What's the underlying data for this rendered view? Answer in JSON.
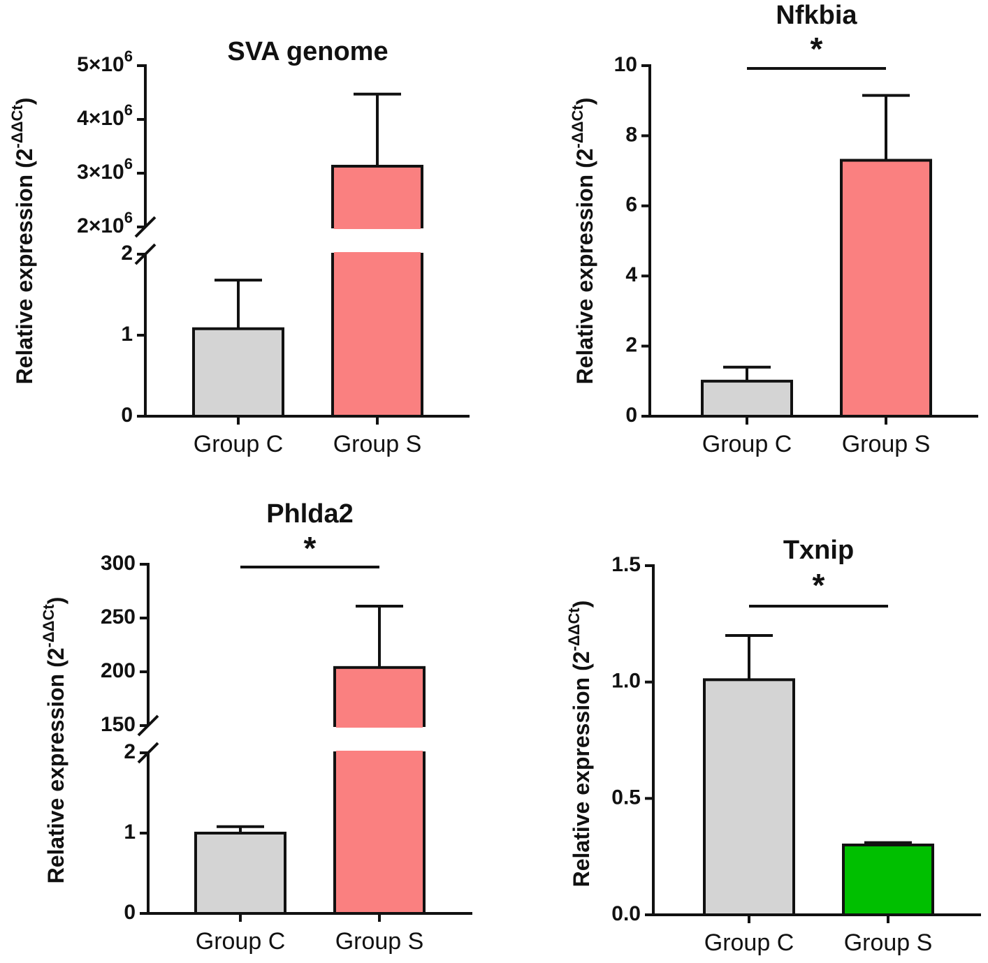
{
  "ylabel": {
    "base": "Relative expression (2",
    "exponent": "-ΔΔCt",
    "close": ")"
  },
  "chart_data": [
    {
      "type": "bar",
      "title": "SVA genome",
      "categories": [
        "Group C",
        "Group S"
      ],
      "values": [
        1.08,
        3130000
      ],
      "errors": [
        0.6,
        1340000
      ],
      "colors": [
        "#d4d4d4",
        "#fa8080"
      ],
      "significance": "",
      "ylabel": "Relative expression (2^-ΔΔCt)",
      "broken_axis": true,
      "lower_range": [
        0,
        2
      ],
      "upper_range": [
        2000000,
        5000000
      ],
      "lower_ticks": [
        "0",
        "1",
        "2"
      ],
      "upper_ticks": [
        "2×10^6",
        "3×10^6",
        "4×10^6",
        "5×10^6"
      ]
    },
    {
      "type": "bar",
      "title": "Nfkbia",
      "categories": [
        "Group C",
        "Group S"
      ],
      "values": [
        1.0,
        7.3
      ],
      "errors": [
        0.4,
        1.85
      ],
      "colors": [
        "#d4d4d4",
        "#fa8080"
      ],
      "significance": "*",
      "ylabel": "Relative expression (2^-ΔΔCt)",
      "broken_axis": false,
      "ylim": [
        0,
        10
      ],
      "ticks": [
        "0",
        "2",
        "4",
        "6",
        "8",
        "10"
      ]
    },
    {
      "type": "bar",
      "title": "Phlda2",
      "categories": [
        "Group C",
        "Group S"
      ],
      "values": [
        1.0,
        204
      ],
      "errors": [
        0.08,
        57
      ],
      "colors": [
        "#d4d4d4",
        "#fa8080"
      ],
      "significance": "*",
      "ylabel": "Relative expression (2^-ΔΔCt)",
      "broken_axis": true,
      "lower_range": [
        0,
        2
      ],
      "upper_range": [
        150,
        300
      ],
      "lower_ticks": [
        "0",
        "1",
        "2"
      ],
      "upper_ticks": [
        "150",
        "200",
        "250",
        "300"
      ]
    },
    {
      "type": "bar",
      "title": "Txnip",
      "categories": [
        "Group C",
        "Group S"
      ],
      "values": [
        1.01,
        0.3
      ],
      "errors": [
        0.19,
        0.01
      ],
      "colors": [
        "#d4d4d4",
        "#00bf00"
      ],
      "significance": "*",
      "ylabel": "Relative expression (2^-ΔΔCt)",
      "broken_axis": false,
      "ylim": [
        0,
        1.5
      ],
      "ticks": [
        "0.0",
        "0.5",
        "1.0",
        "1.5"
      ]
    }
  ]
}
